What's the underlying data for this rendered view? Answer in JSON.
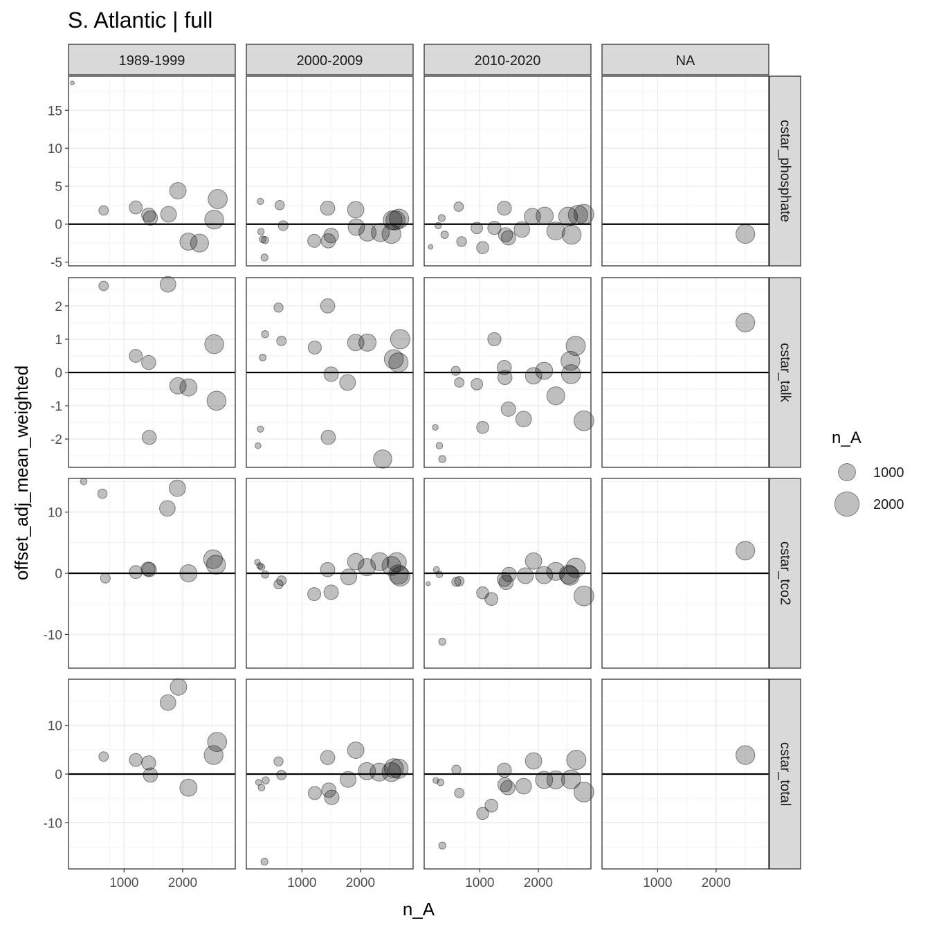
{
  "chart_data": {
    "type": "scatter",
    "title": "S. Atlantic | full",
    "xlabel": "n_A",
    "ylabel": "offset_adj_mean_weighted",
    "col_facets": [
      "1989-1999",
      "2000-2009",
      "2010-2020",
      "NA"
    ],
    "row_facets": [
      "cstar_phosphate",
      "cstar_talk",
      "cstar_tco2",
      "cstar_total"
    ],
    "xlim": [
      50,
      2900
    ],
    "x_ticks": [
      1000,
      2000
    ],
    "x_tick_labels": [
      "1000",
      "2000"
    ],
    "grid": true,
    "point_color": "#000000",
    "point_opacity": 0.25,
    "zero_line_color": "#000000",
    "strip_fill": "#d9d9d9",
    "legend": {
      "title": "n_A",
      "position": "right",
      "sizes": [
        1000,
        2000
      ],
      "labels": [
        "1000",
        "2000"
      ]
    },
    "rows": [
      {
        "name": "cstar_phosphate",
        "ylim": [
          -5.5,
          19.5
        ],
        "y_ticks": [
          -5,
          0,
          5,
          10,
          15
        ],
        "y_tick_labels": [
          "-5",
          "0",
          "5",
          "10",
          "15"
        ],
        "panels": [
          [
            [
              115,
              18.6
            ],
            [
              650,
              1.8
            ],
            [
              1200,
              2.2
            ],
            [
              1420,
              1.2
            ],
            [
              1450,
              0.8
            ],
            [
              1760,
              1.3
            ],
            [
              1920,
              4.4
            ],
            [
              2100,
              -2.3
            ],
            [
              2290,
              -2.5
            ],
            [
              2540,
              0.6
            ],
            [
              2600,
              3.3
            ]
          ],
          [
            [
              290,
              3.0
            ],
            [
              300,
              -1.0
            ],
            [
              330,
              -2.0
            ],
            [
              370,
              -2.1
            ],
            [
              360,
              -4.4
            ],
            [
              620,
              2.5
            ],
            [
              680,
              -0.2
            ],
            [
              1210,
              -2.2
            ],
            [
              1440,
              2.1
            ],
            [
              1450,
              -2.2
            ],
            [
              1500,
              -1.5
            ],
            [
              1920,
              1.9
            ],
            [
              1930,
              -0.4
            ],
            [
              2120,
              -1.1
            ],
            [
              2340,
              -1.1
            ],
            [
              2530,
              -1.3
            ],
            [
              2550,
              0.5
            ],
            [
              2600,
              0.5
            ],
            [
              2660,
              0.7
            ]
          ],
          [
            [
              160,
              -3.0
            ],
            [
              290,
              -0.2
            ],
            [
              350,
              0.8
            ],
            [
              400,
              -1.4
            ],
            [
              640,
              2.3
            ],
            [
              690,
              -2.3
            ],
            [
              950,
              -0.5
            ],
            [
              1050,
              -3.1
            ],
            [
              1250,
              -0.5
            ],
            [
              1420,
              2.1
            ],
            [
              1440,
              -1.4
            ],
            [
              1490,
              -1.8
            ],
            [
              1720,
              -0.7
            ],
            [
              1900,
              1.0
            ],
            [
              2110,
              1.1
            ],
            [
              2300,
              -0.9
            ],
            [
              2510,
              1.0
            ],
            [
              2570,
              -1.4
            ],
            [
              2680,
              1.2
            ],
            [
              2780,
              1.3
            ]
          ],
          [
            [
              2500,
              -1.3
            ]
          ]
        ]
      },
      {
        "name": "cstar_talk",
        "ylim": [
          -2.85,
          2.85
        ],
        "y_ticks": [
          -2,
          -1,
          0,
          1,
          2
        ],
        "y_tick_labels": [
          "-2",
          "-1",
          "0",
          "1",
          "2"
        ],
        "panels": [
          [
            [
              650,
              2.6
            ],
            [
              1200,
              0.5
            ],
            [
              1420,
              0.3
            ],
            [
              1430,
              -1.95
            ],
            [
              1750,
              2.65
            ],
            [
              1920,
              -0.4
            ],
            [
              2100,
              -0.45
            ],
            [
              2540,
              0.85
            ],
            [
              2580,
              -0.85
            ]
          ],
          [
            [
              250,
              -2.2
            ],
            [
              290,
              -1.7
            ],
            [
              330,
              0.45
            ],
            [
              370,
              1.15
            ],
            [
              600,
              1.95
            ],
            [
              650,
              0.95
            ],
            [
              1220,
              0.75
            ],
            [
              1440,
              2.0
            ],
            [
              1450,
              -1.95
            ],
            [
              1500,
              -0.05
            ],
            [
              1780,
              -0.3
            ],
            [
              1920,
              0.9
            ],
            [
              2120,
              0.9
            ],
            [
              2380,
              -2.6
            ],
            [
              2570,
              0.4
            ],
            [
              2650,
              0.3
            ],
            [
              2680,
              1.0
            ]
          ],
          [
            [
              240,
              -1.65
            ],
            [
              310,
              -2.2
            ],
            [
              360,
              -2.6
            ],
            [
              590,
              0.05
            ],
            [
              650,
              -0.3
            ],
            [
              950,
              -0.35
            ],
            [
              1050,
              -1.65
            ],
            [
              1250,
              1.0
            ],
            [
              1420,
              0.15
            ],
            [
              1430,
              -0.15
            ],
            [
              1490,
              -1.1
            ],
            [
              1750,
              -1.4
            ],
            [
              1920,
              -0.1
            ],
            [
              2100,
              0.05
            ],
            [
              2300,
              -0.7
            ],
            [
              2550,
              0.35
            ],
            [
              2560,
              -0.05
            ],
            [
              2640,
              0.8
            ],
            [
              2780,
              -1.45
            ]
          ],
          [
            [
              2500,
              1.5
            ]
          ]
        ]
      },
      {
        "name": "cstar_tco2",
        "ylim": [
          -15.5,
          15.5
        ],
        "y_ticks": [
          -10,
          0,
          10
        ],
        "y_tick_labels": [
          "-10",
          "0",
          "10"
        ],
        "panels": [
          [
            [
              310,
              15.0
            ],
            [
              630,
              13.0
            ],
            [
              680,
              -0.8
            ],
            [
              1200,
              0.2
            ],
            [
              1410,
              0.7
            ],
            [
              1430,
              0.6
            ],
            [
              1740,
              10.6
            ],
            [
              1910,
              13.9
            ],
            [
              2100,
              0.0
            ],
            [
              2520,
              2.3
            ],
            [
              2570,
              1.4
            ]
          ],
          [
            [
              240,
              1.8
            ],
            [
              280,
              1.2
            ],
            [
              310,
              1.0
            ],
            [
              370,
              -0.2
            ],
            [
              600,
              -1.8
            ],
            [
              650,
              -1.2
            ],
            [
              1210,
              -3.4
            ],
            [
              1440,
              0.6
            ],
            [
              1500,
              -3.1
            ],
            [
              1800,
              -0.6
            ],
            [
              1920,
              1.9
            ],
            [
              2110,
              1.0
            ],
            [
              2330,
              1.9
            ],
            [
              2530,
              1.2
            ],
            [
              2620,
              1.8
            ],
            [
              2650,
              -0.2
            ],
            [
              2680,
              -0.5
            ]
          ],
          [
            [
              120,
              -1.7
            ],
            [
              260,
              0.6
            ],
            [
              310,
              -0.2
            ],
            [
              360,
              -11.2
            ],
            [
              600,
              -1.4
            ],
            [
              650,
              -1.3
            ],
            [
              1050,
              -3.2
            ],
            [
              1200,
              -4.2
            ],
            [
              1420,
              -1.0
            ],
            [
              1450,
              -1.5
            ],
            [
              1500,
              -0.2
            ],
            [
              1780,
              -0.4
            ],
            [
              1920,
              2.0
            ],
            [
              2100,
              -0.3
            ],
            [
              2300,
              0.3
            ],
            [
              2520,
              -0.2
            ],
            [
              2540,
              -0.4
            ],
            [
              2640,
              0.9
            ],
            [
              2780,
              -3.7
            ]
          ],
          [
            [
              2500,
              3.7
            ]
          ]
        ]
      },
      {
        "name": "cstar_total",
        "ylim": [
          -19.5,
          19.5
        ],
        "y_ticks": [
          -10,
          0,
          10
        ],
        "y_tick_labels": [
          "-10",
          "0",
          "10"
        ],
        "panels": [
          [
            [
              650,
              3.6
            ],
            [
              1200,
              2.9
            ],
            [
              1420,
              2.3
            ],
            [
              1450,
              -0.2
            ],
            [
              1750,
              14.7
            ],
            [
              1930,
              17.9
            ],
            [
              2100,
              -2.8
            ],
            [
              2530,
              3.9
            ],
            [
              2590,
              6.6
            ]
          ],
          [
            [
              260,
              -1.7
            ],
            [
              310,
              -2.8
            ],
            [
              360,
              -18.0
            ],
            [
              380,
              -1.3
            ],
            [
              600,
              2.6
            ],
            [
              650,
              -0.2
            ],
            [
              1220,
              -3.9
            ],
            [
              1440,
              3.4
            ],
            [
              1460,
              -3.3
            ],
            [
              1510,
              -4.8
            ],
            [
              1790,
              -1.1
            ],
            [
              1920,
              4.9
            ],
            [
              2110,
              0.6
            ],
            [
              2320,
              0.4
            ],
            [
              2530,
              0.4
            ],
            [
              2570,
              1.2
            ],
            [
              2650,
              1.1
            ]
          ],
          [
            [
              250,
              -1.3
            ],
            [
              330,
              -1.7
            ],
            [
              360,
              -14.7
            ],
            [
              600,
              0.9
            ],
            [
              650,
              -3.9
            ],
            [
              1050,
              -8.1
            ],
            [
              1200,
              -6.5
            ],
            [
              1420,
              0.8
            ],
            [
              1430,
              -2.2
            ],
            [
              1480,
              -2.8
            ],
            [
              1750,
              -2.5
            ],
            [
              1920,
              2.7
            ],
            [
              2100,
              -1.2
            ],
            [
              2300,
              -1.2
            ],
            [
              2560,
              -1.1
            ],
            [
              2650,
              2.9
            ],
            [
              2780,
              -3.7
            ]
          ],
          [
            [
              2500,
              3.9
            ]
          ]
        ]
      }
    ]
  }
}
